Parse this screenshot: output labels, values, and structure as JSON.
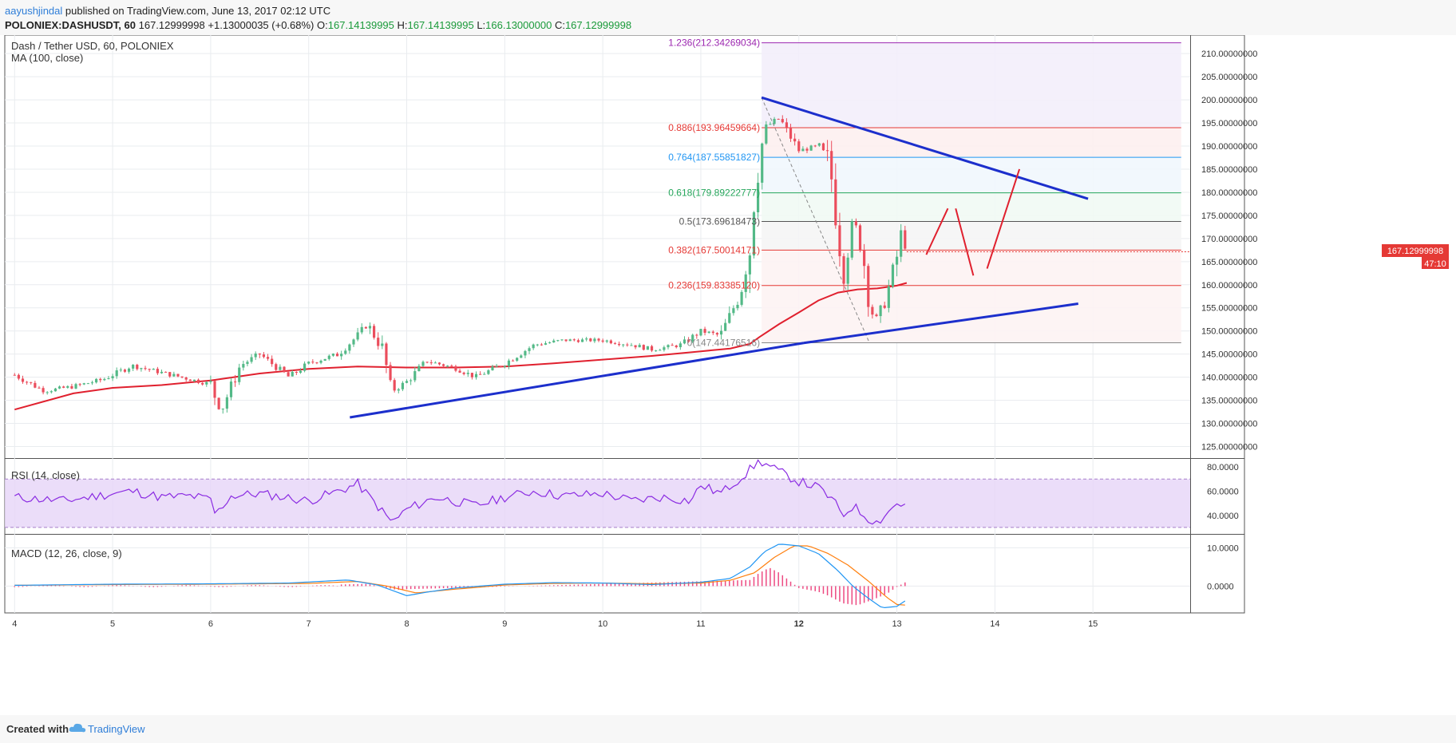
{
  "header": {
    "author": "aayushjindal",
    "published_text": "published on TradingView.com, June 13, 2017 02:12 UTC",
    "symbol": "POLONIEX:DASHUSDT, 60",
    "last": "167.12999998",
    "change": "+1.13000035 (+0.68%)",
    "o_label": "O:",
    "o_value": "167.14139995",
    "h_label": "H:",
    "h_value": "167.14139995",
    "l_label": "L:",
    "l_value": "166.13000000",
    "c_label": "C:",
    "c_value": "167.12999998"
  },
  "main_pane": {
    "title": "Dash / Tether USD, 60, POLONIEX",
    "indicator": "MA (100, close)",
    "price_tag": "167.12999998",
    "time_tag": "47:10"
  },
  "rsi_pane": {
    "title": "RSI (14, close)"
  },
  "macd_pane": {
    "title": "MACD (12, 26, close, 9)"
  },
  "footer": {
    "created_with": "Created with",
    "brand": "TradingView"
  },
  "colors": {
    "candle_up": "#53b987",
    "candle_down": "#eb4d5c",
    "ma": "#e0202e",
    "trendline": "#1c2fcc",
    "projection": "#e0202e",
    "rsi": "#8a2be2",
    "rsi_band": "#e6d5f7",
    "macd_line": "#2196f3",
    "signal_line": "#ff7f0e",
    "histogram": "#e91e63"
  },
  "chart_data": [
    {
      "type": "candlestick",
      "title": "Dash / Tether USD, 60, POLONIEX",
      "x_tick_labels": [
        "4",
        "5",
        "6",
        "7",
        "8",
        "9",
        "10",
        "11",
        "12",
        "13",
        "14",
        "15"
      ],
      "y_tick_labels": [
        "210.00000000",
        "205.00000000",
        "200.00000000",
        "195.00000000",
        "190.00000000",
        "185.00000000",
        "180.00000000",
        "175.00000000",
        "170.00000000",
        "165.00000000",
        "160.00000000",
        "155.00000000",
        "150.00000000",
        "145.00000000",
        "140.00000000",
        "135.00000000",
        "130.00000000",
        "125.00000000"
      ],
      "ylim": [
        122.5,
        214
      ],
      "grid": true,
      "anchors": [
        [
          4.0,
          140.5
        ],
        [
          4.3,
          137.0
        ],
        [
          4.6,
          138.0
        ],
        [
          4.9,
          139.5
        ],
        [
          5.2,
          142.5
        ],
        [
          5.5,
          141.0
        ],
        [
          5.8,
          139.5
        ],
        [
          6.0,
          138.5
        ],
        [
          6.1,
          132.5
        ],
        [
          6.3,
          142.5
        ],
        [
          6.5,
          145.0
        ],
        [
          6.8,
          140.0
        ],
        [
          7.0,
          143.0
        ],
        [
          7.3,
          145.0
        ],
        [
          7.5,
          149.0
        ],
        [
          7.6,
          151.5
        ],
        [
          7.75,
          146.0
        ],
        [
          7.85,
          137.0
        ],
        [
          8.0,
          139.0
        ],
        [
          8.2,
          143.5
        ],
        [
          8.5,
          142.0
        ],
        [
          8.7,
          140.0
        ],
        [
          9.0,
          143.0
        ],
        [
          9.3,
          147.0
        ],
        [
          9.6,
          148.0
        ],
        [
          10.0,
          148.0
        ],
        [
          10.3,
          147.0
        ],
        [
          10.5,
          146.0
        ],
        [
          10.8,
          147.0
        ],
        [
          11.0,
          150.0
        ],
        [
          11.2,
          149.0
        ],
        [
          11.4,
          158.0
        ],
        [
          11.5,
          168.0
        ],
        [
          11.55,
          180.0
        ],
        [
          11.65,
          194.0
        ],
        [
          11.8,
          196.0
        ],
        [
          12.0,
          189.0
        ],
        [
          12.2,
          190.0
        ],
        [
          12.3,
          187.0
        ],
        [
          12.35,
          181.0
        ],
        [
          12.45,
          162.0
        ],
        [
          12.55,
          174.0
        ],
        [
          12.65,
          168.0
        ],
        [
          12.72,
          155.0
        ],
        [
          12.8,
          152.0
        ],
        [
          12.9,
          158.0
        ],
        [
          13.0,
          166.0
        ],
        [
          13.05,
          172.0
        ],
        [
          13.1,
          167.13
        ]
      ],
      "indicator_ma": {
        "name": "MA (100, close)",
        "points": [
          [
            4.0,
            133.0
          ],
          [
            4.6,
            136.5
          ],
          [
            5.0,
            137.7
          ],
          [
            5.5,
            138.3
          ],
          [
            6.0,
            139.3
          ],
          [
            6.5,
            140.8
          ],
          [
            7.0,
            141.8
          ],
          [
            7.5,
            142.3
          ],
          [
            8.0,
            142.1
          ],
          [
            8.5,
            142.1
          ],
          [
            9.0,
            142.3
          ],
          [
            9.5,
            143.0
          ],
          [
            10.0,
            143.8
          ],
          [
            10.5,
            144.6
          ],
          [
            11.0,
            145.6
          ],
          [
            11.3,
            146.2
          ],
          [
            11.5,
            147.2
          ],
          [
            11.6,
            148.7
          ],
          [
            11.8,
            151.5
          ],
          [
            12.0,
            154.0
          ],
          [
            12.2,
            156.6
          ],
          [
            12.4,
            158.3
          ],
          [
            12.6,
            159.0
          ],
          [
            12.8,
            159.2
          ],
          [
            13.0,
            159.8
          ],
          [
            13.1,
            160.4
          ]
        ]
      },
      "trendlines": [
        {
          "from": [
            7.42,
            131.3
          ],
          "to": [
            12.05,
            147.4
          ]
        },
        {
          "from": [
            12.05,
            147.4
          ],
          "to": [
            14.85,
            155.9
          ]
        },
        {
          "from": [
            11.62,
            200.5
          ],
          "to": [
            14.95,
            178.6
          ]
        }
      ],
      "projection": [
        [
          13.3,
          166.5
        ],
        [
          13.52,
          176.5
        ],
        [
          13.6,
          176.5
        ],
        [
          13.78,
          162.0
        ],
        [
          13.92,
          163.5
        ],
        [
          14.25,
          185.0
        ]
      ],
      "fib_swing": {
        "from": [
          11.62,
          200.5
        ],
        "to": [
          12.72,
          147.44
        ]
      },
      "fib_levels": [
        {
          "label": "1.236(212.34269034)",
          "ratio": 1.236,
          "value": 212.34269034,
          "color": "#9c27b0"
        },
        {
          "label": "0.886(193.96459664)",
          "ratio": 0.886,
          "value": 193.96459664,
          "color": "#e53935"
        },
        {
          "label": "0.764(187.55851827)",
          "ratio": 0.764,
          "value": 187.55851827,
          "color": "#2196f3"
        },
        {
          "label": "0.618(179.89222777)",
          "ratio": 0.618,
          "value": 179.89222777,
          "color": "#26a65b"
        },
        {
          "label": "0.5(173.69618473)",
          "ratio": 0.5,
          "value": 173.69618473,
          "color": "#555555"
        },
        {
          "label": "0.382(167.50014171)",
          "ratio": 0.382,
          "value": 167.50014171,
          "color": "#e53935"
        },
        {
          "label": "0.236(159.83385120)",
          "ratio": 0.236,
          "value": 159.8338512,
          "color": "#e53935"
        },
        {
          "label": "0(147.44176516)",
          "ratio": 0,
          "value": 147.44176516,
          "color": "#888888"
        }
      ],
      "last_value": 167.12999998
    },
    {
      "type": "line",
      "title": "RSI (14, close)",
      "y_tick_labels": [
        "80.0000",
        "60.0000",
        "40.0000"
      ],
      "ylim": [
        26,
        86
      ],
      "band": [
        30,
        70
      ],
      "anchors": [
        [
          4.0,
          55
        ],
        [
          4.5,
          52
        ],
        [
          5.0,
          58
        ],
        [
          5.2,
          60
        ],
        [
          5.5,
          55
        ],
        [
          5.8,
          56
        ],
        [
          6.0,
          53
        ],
        [
          6.05,
          40
        ],
        [
          6.2,
          56
        ],
        [
          6.5,
          58
        ],
        [
          7.0,
          52
        ],
        [
          7.3,
          60
        ],
        [
          7.5,
          66
        ],
        [
          7.7,
          48
        ],
        [
          7.85,
          34
        ],
        [
          8.0,
          45
        ],
        [
          8.3,
          55
        ],
        [
          8.7,
          48
        ],
        [
          9.0,
          55
        ],
        [
          9.3,
          60
        ],
        [
          9.6,
          56
        ],
        [
          10.0,
          58
        ],
        [
          10.3,
          52
        ],
        [
          10.6,
          55
        ],
        [
          10.9,
          52
        ],
        [
          11.0,
          65
        ],
        [
          11.2,
          58
        ],
        [
          11.45,
          74
        ],
        [
          11.6,
          85
        ],
        [
          11.8,
          76
        ],
        [
          12.0,
          68
        ],
        [
          12.2,
          63
        ],
        [
          12.35,
          52
        ],
        [
          12.45,
          40
        ],
        [
          12.55,
          48
        ],
        [
          12.7,
          38
        ],
        [
          12.8,
          34
        ],
        [
          12.9,
          42
        ],
        [
          13.0,
          50
        ],
        [
          13.1,
          48
        ]
      ]
    },
    {
      "type": "line",
      "title": "MACD (12, 26, close, 9)",
      "y_tick_labels": [
        "10.0000",
        "0.0000"
      ],
      "ylim": [
        -7,
        13
      ],
      "series": [
        {
          "role": "macd",
          "anchors": [
            [
              4.0,
              0.2
            ],
            [
              5.0,
              0.5
            ],
            [
              6.0,
              0.6
            ],
            [
              6.8,
              0.8
            ],
            [
              7.4,
              1.6
            ],
            [
              7.7,
              0.3
            ],
            [
              8.0,
              -2.5
            ],
            [
              8.2,
              -1.6
            ],
            [
              8.5,
              -0.5
            ],
            [
              9.0,
              0.5
            ],
            [
              9.5,
              0.9
            ],
            [
              10.0,
              0.8
            ],
            [
              10.5,
              0.4
            ],
            [
              11.0,
              1.0
            ],
            [
              11.3,
              2.0
            ],
            [
              11.5,
              5.0
            ],
            [
              11.65,
              9.0
            ],
            [
              11.8,
              11.0
            ],
            [
              12.0,
              10.5
            ],
            [
              12.2,
              8.5
            ],
            [
              12.4,
              4.0
            ],
            [
              12.55,
              0.0
            ],
            [
              12.7,
              -3.0
            ],
            [
              12.85,
              -5.7
            ],
            [
              13.0,
              -5.3
            ],
            [
              13.1,
              -3.6
            ]
          ]
        },
        {
          "role": "signal",
          "anchors": [
            [
              4.0,
              0.2
            ],
            [
              5.0,
              0.4
            ],
            [
              6.0,
              0.5
            ],
            [
              7.0,
              0.7
            ],
            [
              7.5,
              1.2
            ],
            [
              7.8,
              0.0
            ],
            [
              8.1,
              -1.8
            ],
            [
              8.5,
              -0.8
            ],
            [
              9.0,
              0.3
            ],
            [
              9.5,
              0.7
            ],
            [
              10.0,
              0.8
            ],
            [
              10.5,
              0.6
            ],
            [
              11.0,
              0.8
            ],
            [
              11.3,
              1.5
            ],
            [
              11.55,
              3.5
            ],
            [
              11.75,
              7.5
            ],
            [
              11.95,
              10.5
            ],
            [
              12.1,
              10.5
            ],
            [
              12.3,
              8.5
            ],
            [
              12.5,
              5.5
            ],
            [
              12.7,
              1.5
            ],
            [
              12.9,
              -3.0
            ],
            [
              13.0,
              -4.8
            ],
            [
              13.1,
              -5.0
            ]
          ]
        }
      ],
      "histogram": [
        [
          7.3,
          0.4
        ],
        [
          7.6,
          0.6
        ],
        [
          7.9,
          -1.0
        ],
        [
          8.0,
          -0.8
        ],
        [
          11.5,
          1.6
        ],
        [
          11.6,
          3.5
        ],
        [
          11.7,
          4.8
        ],
        [
          11.8,
          3.5
        ],
        [
          11.9,
          1.5
        ],
        [
          12.0,
          -0.5
        ],
        [
          12.1,
          -1.0
        ],
        [
          12.2,
          -1.5
        ],
        [
          12.3,
          -2.5
        ],
        [
          12.45,
          -4.5
        ],
        [
          12.6,
          -5.0
        ],
        [
          12.75,
          -3.6
        ],
        [
          12.9,
          -2.0
        ],
        [
          13.0,
          -0.2
        ],
        [
          13.1,
          1.2
        ]
      ]
    }
  ]
}
